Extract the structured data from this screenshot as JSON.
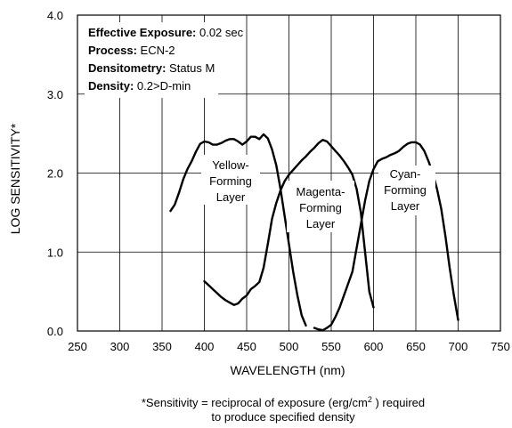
{
  "chart_data": {
    "type": "line",
    "title": "",
    "xlabel": "WAVELENGTH (nm)",
    "ylabel": "LOG SENSITIVITY*",
    "xlim": [
      250,
      750
    ],
    "ylim": [
      0.0,
      4.0
    ],
    "x_ticks": [
      "250",
      "300",
      "350",
      "400",
      "450",
      "500",
      "550",
      "600",
      "650",
      "700",
      "750"
    ],
    "y_ticks": [
      "0.0",
      "1.0",
      "2.0",
      "3.0",
      "4.0"
    ],
    "grid": true,
    "line_color": "#000000",
    "annotation_box": [
      {
        "key": "Effective Exposure:",
        "value": " 0.02 sec"
      },
      {
        "key": "Process:",
        "value": " ECN-2"
      },
      {
        "key": "Densitometry:",
        "value": " Status M"
      },
      {
        "key": "Density:",
        "value": " 0.2>D-min"
      }
    ],
    "curve_labels": [
      {
        "lines": [
          "Yellow-",
          "Forming",
          "Layer"
        ]
      },
      {
        "lines": [
          "Magenta-",
          "Forming",
          "Layer"
        ]
      },
      {
        "lines": [
          "Cyan-",
          "Forming",
          "Layer"
        ]
      }
    ],
    "series": [
      {
        "x": [
          360,
          365,
          370,
          375,
          380,
          385,
          390,
          395,
          400,
          405,
          410,
          415,
          420,
          425,
          430,
          435,
          440,
          445,
          450,
          455,
          460,
          465,
          470,
          475,
          480,
          485,
          490,
          495,
          500,
          505,
          510,
          515,
          520
        ],
        "y": [
          1.52,
          1.6,
          1.75,
          1.92,
          2.05,
          2.15,
          2.27,
          2.37,
          2.4,
          2.39,
          2.36,
          2.36,
          2.38,
          2.41,
          2.43,
          2.43,
          2.4,
          2.36,
          2.4,
          2.46,
          2.46,
          2.43,
          2.49,
          2.44,
          2.3,
          2.1,
          1.8,
          1.45,
          1.1,
          0.75,
          0.45,
          0.2,
          0.07
        ]
      },
      {
        "x": [
          400,
          405,
          410,
          415,
          420,
          425,
          430,
          435,
          440,
          445,
          450,
          455,
          460,
          465,
          470,
          475,
          480,
          485,
          490,
          495,
          500,
          505,
          510,
          515,
          520,
          525,
          530,
          535,
          540,
          545,
          550,
          555,
          560,
          565,
          570,
          575,
          580,
          585,
          590,
          595,
          600
        ],
        "y": [
          0.63,
          0.58,
          0.53,
          0.48,
          0.43,
          0.39,
          0.36,
          0.33,
          0.35,
          0.41,
          0.45,
          0.53,
          0.57,
          0.62,
          0.8,
          1.1,
          1.42,
          1.62,
          1.78,
          1.9,
          1.98,
          2.04,
          2.1,
          2.16,
          2.21,
          2.27,
          2.32,
          2.38,
          2.42,
          2.4,
          2.34,
          2.28,
          2.22,
          2.15,
          2.07,
          1.98,
          1.8,
          1.5,
          1.0,
          0.5,
          0.3
        ]
      },
      {
        "x": [
          530,
          535,
          540,
          545,
          550,
          555,
          560,
          565,
          570,
          575,
          580,
          585,
          590,
          595,
          600,
          605,
          610,
          615,
          620,
          625,
          630,
          635,
          640,
          645,
          650,
          655,
          660,
          665,
          670,
          675,
          680,
          685,
          690,
          695,
          700
        ],
        "y": [
          0.04,
          0.02,
          0.01,
          0.04,
          0.08,
          0.18,
          0.3,
          0.45,
          0.6,
          0.75,
          1.05,
          1.35,
          1.65,
          1.9,
          2.05,
          2.15,
          2.18,
          2.2,
          2.23,
          2.25,
          2.28,
          2.33,
          2.37,
          2.39,
          2.39,
          2.36,
          2.28,
          2.15,
          2.0,
          1.8,
          1.55,
          1.2,
          0.8,
          0.45,
          0.14
        ]
      }
    ]
  },
  "footnote": {
    "line1_before": "*Sensitivity = reciprocal of exposure (erg/cm",
    "line1_sup": "2",
    "line1_after": " ) required",
    "line2": "to produce specified density"
  }
}
